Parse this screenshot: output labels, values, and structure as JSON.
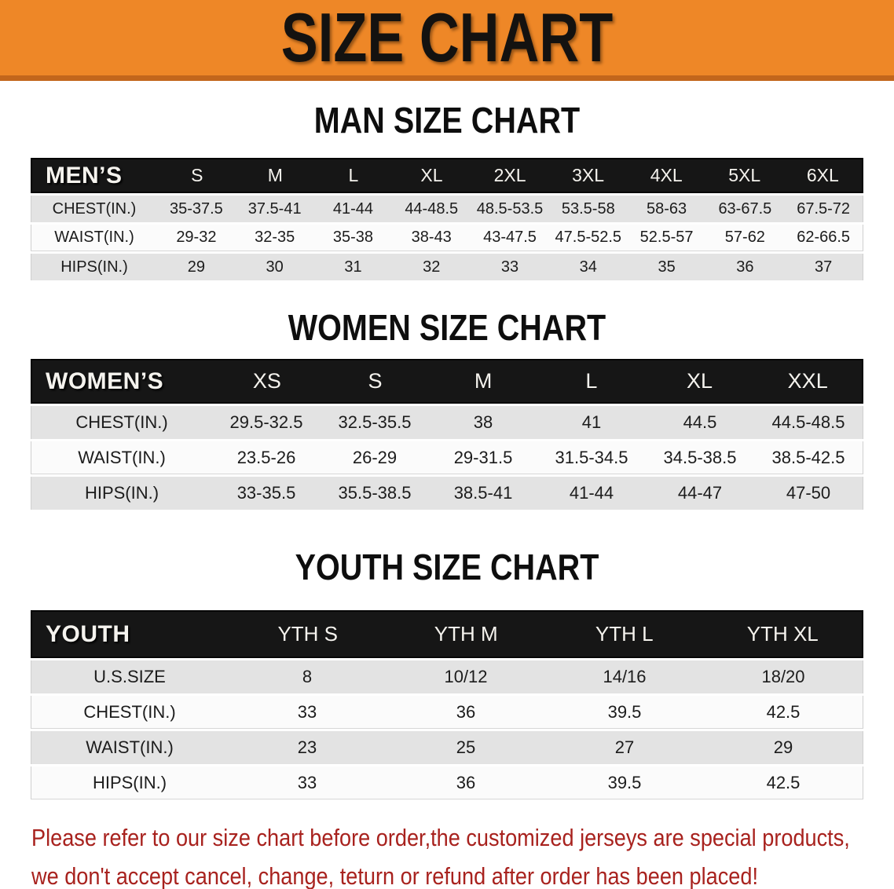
{
  "banner": {
    "title": "SIZE CHART"
  },
  "colors": {
    "banner_bg": "#EE8727",
    "banner_border": "#C2661C",
    "header_bg": "#161616",
    "row_gray": "#E3E3E3",
    "row_white": "#FBFBFB",
    "disclaimer_red": "#A8221E"
  },
  "sections": [
    {
      "heading": "MAN SIZE CHART",
      "table": {
        "header": {
          "label": "MEN’S",
          "cols": [
            "S",
            "M",
            "L",
            "XL",
            "2XL",
            "3XL",
            "4XL",
            "5XL",
            "6XL"
          ]
        },
        "rows": [
          {
            "label": "CHEST(IN.)",
            "values": [
              "35-37.5",
              "37.5-41",
              "41-44",
              "44-48.5",
              "48.5-53.5",
              "53.5-58",
              "58-63",
              "63-67.5",
              "67.5-72"
            ]
          },
          {
            "label": "WAIST(IN.)",
            "values": [
              "29-32",
              "32-35",
              "35-38",
              "38-43",
              "43-47.5",
              "47.5-52.5",
              "52.5-57",
              "57-62",
              "62-66.5"
            ]
          },
          {
            "label": "HIPS(IN.)",
            "values": [
              "29",
              "30",
              "31",
              "32",
              "33",
              "34",
              "35",
              "36",
              "37"
            ]
          }
        ]
      }
    },
    {
      "heading": "WOMEN SIZE CHART",
      "table": {
        "header": {
          "label": "WOMEN’S",
          "cols": [
            "XS",
            "S",
            "M",
            "L",
            "XL",
            "XXL"
          ]
        },
        "rows": [
          {
            "label": "CHEST(IN.)",
            "values": [
              "29.5-32.5",
              "32.5-35.5",
              "38",
              "41",
              "44.5",
              "44.5-48.5"
            ]
          },
          {
            "label": "WAIST(IN.)",
            "values": [
              "23.5-26",
              "26-29",
              "29-31.5",
              "31.5-34.5",
              "34.5-38.5",
              "38.5-42.5"
            ]
          },
          {
            "label": "HIPS(IN.)",
            "values": [
              "33-35.5",
              "35.5-38.5",
              "38.5-41",
              "41-44",
              "44-47",
              "47-50"
            ]
          }
        ]
      }
    },
    {
      "heading": "YOUTH SIZE CHART",
      "table": {
        "header": {
          "label": "YOUTH",
          "cols": [
            "YTH S",
            "YTH M",
            "YTH L",
            "YTH XL"
          ]
        },
        "rows": [
          {
            "label": "U.S.SIZE",
            "values": [
              "8",
              "10/12",
              "14/16",
              "18/20"
            ]
          },
          {
            "label": "CHEST(IN.)",
            "values": [
              "33",
              "36",
              "39.5",
              "42.5"
            ]
          },
          {
            "label": "WAIST(IN.)",
            "values": [
              "23",
              "25",
              "27",
              "29"
            ]
          },
          {
            "label": "HIPS(IN.)",
            "values": [
              "33",
              "36",
              "39.5",
              "42.5"
            ]
          }
        ]
      }
    }
  ],
  "disclaimer": {
    "line1": "Please refer to our size chart before order,the customized jerseys are special products,",
    "line2": "we don't accept cancel, change, teturn or refund after order has been placed!"
  }
}
